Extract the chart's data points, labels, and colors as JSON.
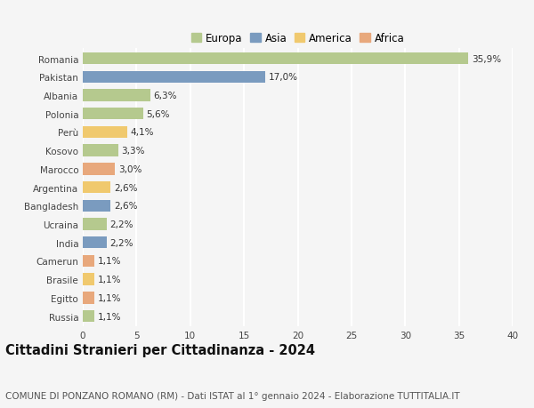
{
  "countries": [
    "Romania",
    "Pakistan",
    "Albania",
    "Polonia",
    "Perù",
    "Kosovo",
    "Marocco",
    "Argentina",
    "Bangladesh",
    "Ucraina",
    "India",
    "Camerun",
    "Brasile",
    "Egitto",
    "Russia"
  ],
  "values": [
    35.9,
    17.0,
    6.3,
    5.6,
    4.1,
    3.3,
    3.0,
    2.6,
    2.6,
    2.2,
    2.2,
    1.1,
    1.1,
    1.1,
    1.1
  ],
  "labels": [
    "35,9%",
    "17,0%",
    "6,3%",
    "5,6%",
    "4,1%",
    "3,3%",
    "3,0%",
    "2,6%",
    "2,6%",
    "2,2%",
    "2,2%",
    "1,1%",
    "1,1%",
    "1,1%",
    "1,1%"
  ],
  "continents": [
    "Europa",
    "Asia",
    "Europa",
    "Europa",
    "America",
    "Europa",
    "Africa",
    "America",
    "Asia",
    "Europa",
    "Asia",
    "Africa",
    "America",
    "Africa",
    "Europa"
  ],
  "colors": {
    "Europa": "#b5c98e",
    "Asia": "#7a9bbf",
    "America": "#f0c96e",
    "Africa": "#e8a87c"
  },
  "legend_order": [
    "Europa",
    "Asia",
    "America",
    "Africa"
  ],
  "title": "Cittadini Stranieri per Cittadinanza - 2024",
  "subtitle": "COMUNE DI PONZANO ROMANO (RM) - Dati ISTAT al 1° gennaio 2024 - Elaborazione TUTTITALIA.IT",
  "xlim": [
    0,
    40
  ],
  "xticks": [
    0,
    5,
    10,
    15,
    20,
    25,
    30,
    35,
    40
  ],
  "background_color": "#f5f5f5",
  "grid_color": "#ffffff",
  "bar_height": 0.65,
  "title_fontsize": 10.5,
  "subtitle_fontsize": 7.5,
  "label_fontsize": 7.5,
  "tick_fontsize": 7.5,
  "legend_fontsize": 8.5
}
